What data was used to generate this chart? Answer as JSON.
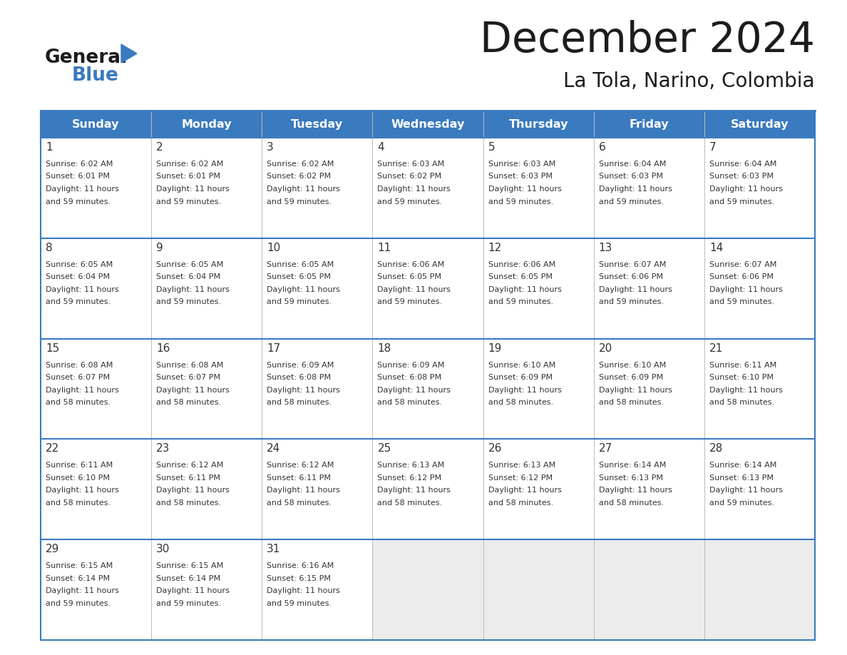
{
  "title": "December 2024",
  "subtitle": "La Tola, Narino, Colombia",
  "header_color": "#3a7abf",
  "header_text_color": "#ffffff",
  "cell_bg_white": "#ffffff",
  "cell_bg_gray": "#ececec",
  "text_color": "#333333",
  "border_color": "#3a7abf",
  "days_of_week": [
    "Sunday",
    "Monday",
    "Tuesday",
    "Wednesday",
    "Thursday",
    "Friday",
    "Saturday"
  ],
  "weeks": [
    [
      {
        "day": 1,
        "sunrise": "6:02 AM",
        "sunset": "6:01 PM",
        "daylight_mins": "59"
      },
      {
        "day": 2,
        "sunrise": "6:02 AM",
        "sunset": "6:01 PM",
        "daylight_mins": "59"
      },
      {
        "day": 3,
        "sunrise": "6:02 AM",
        "sunset": "6:02 PM",
        "daylight_mins": "59"
      },
      {
        "day": 4,
        "sunrise": "6:03 AM",
        "sunset": "6:02 PM",
        "daylight_mins": "59"
      },
      {
        "day": 5,
        "sunrise": "6:03 AM",
        "sunset": "6:03 PM",
        "daylight_mins": "59"
      },
      {
        "day": 6,
        "sunrise": "6:04 AM",
        "sunset": "6:03 PM",
        "daylight_mins": "59"
      },
      {
        "day": 7,
        "sunrise": "6:04 AM",
        "sunset": "6:03 PM",
        "daylight_mins": "59"
      }
    ],
    [
      {
        "day": 8,
        "sunrise": "6:05 AM",
        "sunset": "6:04 PM",
        "daylight_mins": "59"
      },
      {
        "day": 9,
        "sunrise": "6:05 AM",
        "sunset": "6:04 PM",
        "daylight_mins": "59"
      },
      {
        "day": 10,
        "sunrise": "6:05 AM",
        "sunset": "6:05 PM",
        "daylight_mins": "59"
      },
      {
        "day": 11,
        "sunrise": "6:06 AM",
        "sunset": "6:05 PM",
        "daylight_mins": "59"
      },
      {
        "day": 12,
        "sunrise": "6:06 AM",
        "sunset": "6:05 PM",
        "daylight_mins": "59"
      },
      {
        "day": 13,
        "sunrise": "6:07 AM",
        "sunset": "6:06 PM",
        "daylight_mins": "59"
      },
      {
        "day": 14,
        "sunrise": "6:07 AM",
        "sunset": "6:06 PM",
        "daylight_mins": "59"
      }
    ],
    [
      {
        "day": 15,
        "sunrise": "6:08 AM",
        "sunset": "6:07 PM",
        "daylight_mins": "58"
      },
      {
        "day": 16,
        "sunrise": "6:08 AM",
        "sunset": "6:07 PM",
        "daylight_mins": "58"
      },
      {
        "day": 17,
        "sunrise": "6:09 AM",
        "sunset": "6:08 PM",
        "daylight_mins": "58"
      },
      {
        "day": 18,
        "sunrise": "6:09 AM",
        "sunset": "6:08 PM",
        "daylight_mins": "58"
      },
      {
        "day": 19,
        "sunrise": "6:10 AM",
        "sunset": "6:09 PM",
        "daylight_mins": "58"
      },
      {
        "day": 20,
        "sunrise": "6:10 AM",
        "sunset": "6:09 PM",
        "daylight_mins": "58"
      },
      {
        "day": 21,
        "sunrise": "6:11 AM",
        "sunset": "6:10 PM",
        "daylight_mins": "58"
      }
    ],
    [
      {
        "day": 22,
        "sunrise": "6:11 AM",
        "sunset": "6:10 PM",
        "daylight_mins": "58"
      },
      {
        "day": 23,
        "sunrise": "6:12 AM",
        "sunset": "6:11 PM",
        "daylight_mins": "58"
      },
      {
        "day": 24,
        "sunrise": "6:12 AM",
        "sunset": "6:11 PM",
        "daylight_mins": "58"
      },
      {
        "day": 25,
        "sunrise": "6:13 AM",
        "sunset": "6:12 PM",
        "daylight_mins": "58"
      },
      {
        "day": 26,
        "sunrise": "6:13 AM",
        "sunset": "6:12 PM",
        "daylight_mins": "58"
      },
      {
        "day": 27,
        "sunrise": "6:14 AM",
        "sunset": "6:13 PM",
        "daylight_mins": "58"
      },
      {
        "day": 28,
        "sunrise": "6:14 AM",
        "sunset": "6:13 PM",
        "daylight_mins": "59"
      }
    ],
    [
      {
        "day": 29,
        "sunrise": "6:15 AM",
        "sunset": "6:14 PM",
        "daylight_mins": "59"
      },
      {
        "day": 30,
        "sunrise": "6:15 AM",
        "sunset": "6:14 PM",
        "daylight_mins": "59"
      },
      {
        "day": 31,
        "sunrise": "6:16 AM",
        "sunset": "6:15 PM",
        "daylight_mins": "59"
      },
      null,
      null,
      null,
      null
    ]
  ],
  "logo_text_general": "General",
  "logo_text_blue": "Blue",
  "logo_triangle_color": "#3a7abf"
}
